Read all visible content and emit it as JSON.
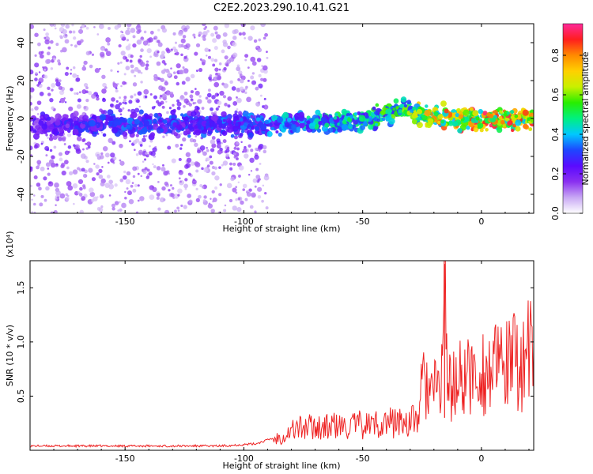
{
  "title": "C2E2.2023.290.10.41.G21",
  "chart_data": [
    {
      "type": "heatmap",
      "xlabel": "Height of straight line (km)",
      "ylabel": "Frequency (Hz)",
      "xlim": [
        -190,
        22
      ],
      "ylim": [
        -50,
        50
      ],
      "x_ticks": [
        -150,
        -100,
        -50,
        0
      ],
      "y_ticks": [
        -40,
        -20,
        0,
        20,
        40
      ],
      "colorbar": {
        "label": "Normalized spectral amplitude",
        "range": [
          0.0,
          0.96
        ],
        "ticks": [
          0.0,
          0.2,
          0.4,
          0.6,
          0.8
        ],
        "tick_labels": [
          "0.0",
          "0.2",
          "0.4",
          "0.6",
          "0.8"
        ],
        "colormap": [
          "#ffffff",
          "#c8a8f4",
          "#8a30f0",
          "#5a0aff",
          "#1e46ff",
          "#00c8ff",
          "#00f080",
          "#28ee00",
          "#c8f000",
          "#ffd000",
          "#ff8a00",
          "#ff1e1e",
          "#ff2a9a"
        ]
      },
      "ridge": [
        {
          "x": -190,
          "y": -4,
          "amplitude": 0.25
        },
        {
          "x": -150,
          "y": -3,
          "amplitude": 0.35
        },
        {
          "x": -100,
          "y": -3,
          "amplitude": 0.35
        },
        {
          "x": -80,
          "y": -2,
          "amplitude": 0.45
        },
        {
          "x": -60,
          "y": -3,
          "amplitude": 0.5
        },
        {
          "x": -45,
          "y": 0,
          "amplitude": 0.55
        },
        {
          "x": -32,
          "y": 5,
          "amplitude": 0.6
        },
        {
          "x": -25,
          "y": 2,
          "amplitude": 0.75
        },
        {
          "x": -10,
          "y": 0,
          "amplitude": 0.85
        },
        {
          "x": 0,
          "y": -1,
          "amplitude": 0.9
        },
        {
          "x": 22,
          "y": -1,
          "amplitude": 0.85
        }
      ]
    },
    {
      "type": "line",
      "xlabel": "Height of straight line (km)",
      "ylabel": "SNR (10 * v/v)",
      "y_multiplier": "(x10⁴)",
      "xlim": [
        -190,
        22
      ],
      "ylim": [
        0.0,
        1.75
      ],
      "x_ticks": [
        -150,
        -100,
        -50,
        0
      ],
      "y_ticks": [
        0.5,
        1.0,
        1.5
      ],
      "y_tick_labels": [
        "0.5",
        "1.0",
        "1.5"
      ],
      "series": [
        {
          "color": "#ee2222",
          "x": [
            -190,
            -170,
            -150,
            -130,
            -110,
            -95,
            -88,
            -82,
            -78,
            -74,
            -70,
            -66,
            -62,
            -58,
            -54,
            -50,
            -46,
            -42,
            -38,
            -34,
            -30,
            -27,
            -25,
            -23,
            -21,
            -19,
            -17,
            -15.5,
            -14,
            -12,
            -10,
            -8,
            -6,
            -4,
            -2,
            0,
            2,
            4,
            6,
            8,
            10,
            12,
            14,
            16,
            18,
            20,
            22
          ],
          "y": [
            0.03,
            0.03,
            0.03,
            0.03,
            0.03,
            0.05,
            0.1,
            0.16,
            0.22,
            0.22,
            0.24,
            0.22,
            0.24,
            0.22,
            0.24,
            0.25,
            0.25,
            0.27,
            0.27,
            0.28,
            0.28,
            0.3,
            0.62,
            0.65,
            0.55,
            0.58,
            0.6,
            1.72,
            0.6,
            0.62,
            0.66,
            0.73,
            0.7,
            0.75,
            0.68,
            0.8,
            0.72,
            0.82,
            0.78,
            0.8,
            0.85,
            0.8,
            0.88,
            0.84,
            0.9,
            0.95,
            0.96
          ]
        }
      ]
    }
  ]
}
